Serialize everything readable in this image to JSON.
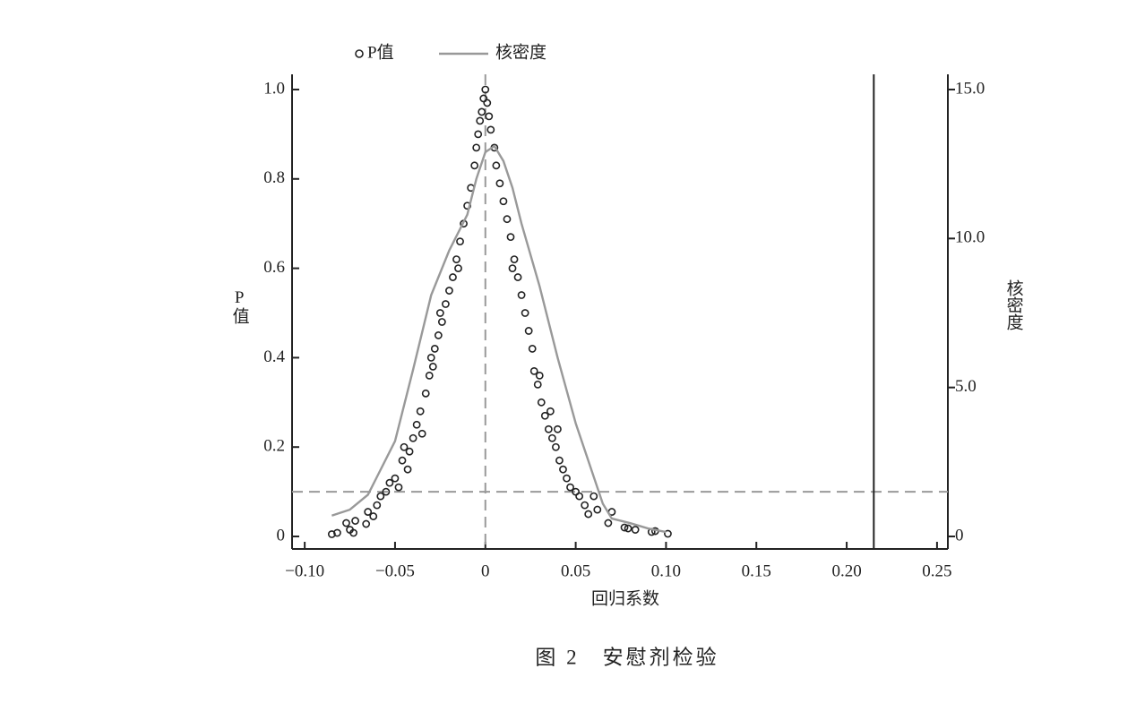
{
  "chart_data": {
    "type": "scatter",
    "caption": "图 2　安慰剂检验",
    "x_label": "回归系数",
    "y_label": "P值",
    "y2_label": "核密度",
    "xlim": [
      -0.107,
      0.256
    ],
    "ylim": [
      -0.028,
      1.034
    ],
    "y2lim": [
      -0.42,
      15.51
    ],
    "xticks": [
      {
        "value": -0.1,
        "label": "−0.10"
      },
      {
        "value": -0.05,
        "label": "−0.05"
      },
      0,
      0.05,
      {
        "value": 0.1,
        "label": "0.10"
      },
      0.15,
      {
        "value": 0.2,
        "label": "0.20"
      },
      0.25
    ],
    "yticks": [
      0,
      0.2,
      0.4,
      0.6,
      0.8,
      {
        "value": 1,
        "label": "1.0"
      }
    ],
    "y2ticks": [
      0,
      {
        "value": 5,
        "label": "5.0"
      },
      {
        "value": 10,
        "label": "10.0"
      },
      {
        "value": 15,
        "label": "15.0"
      }
    ],
    "reference_lines": [
      {
        "axis": "y",
        "value": 0.1,
        "style": "dashed",
        "color": "#999999"
      },
      {
        "axis": "x",
        "value": 0,
        "style": "dashed",
        "color": "#999999"
      },
      {
        "axis": "x",
        "value": 0.215,
        "style": "solid",
        "color": "#222222"
      }
    ],
    "series": [
      {
        "name": "P值",
        "type": "scatter",
        "color": "#222222",
        "x": [
          -0.085,
          -0.082,
          -0.077,
          -0.075,
          -0.073,
          -0.072,
          -0.066,
          -0.065,
          -0.062,
          -0.06,
          -0.058,
          -0.055,
          -0.053,
          -0.05,
          -0.048,
          -0.046,
          -0.045,
          -0.043,
          -0.042,
          -0.04,
          -0.038,
          -0.036,
          -0.035,
          -0.033,
          -0.031,
          -0.03,
          -0.029,
          -0.028,
          -0.026,
          -0.025,
          -0.024,
          -0.022,
          -0.02,
          -0.018,
          -0.016,
          -0.015,
          -0.014,
          -0.012,
          -0.01,
          -0.008,
          -0.006,
          -0.005,
          -0.004,
          -0.003,
          -0.002,
          -0.001,
          0,
          0.001,
          0.002,
          0.003,
          0.005,
          0.006,
          0.008,
          0.01,
          0.012,
          0.014,
          0.015,
          0.016,
          0.018,
          0.02,
          0.022,
          0.024,
          0.026,
          0.027,
          0.029,
          0.03,
          0.031,
          0.033,
          0.035,
          0.036,
          0.037,
          0.039,
          0.04,
          0.041,
          0.043,
          0.045,
          0.047,
          0.05,
          0.052,
          0.055,
          0.057,
          0.06,
          0.062,
          0.068,
          0.07,
          0.077,
          0.079,
          0.083,
          0.092,
          0.094,
          0.101
        ],
        "values": [
          0.005,
          0.008,
          0.03,
          0.015,
          0.008,
          0.035,
          0.028,
          0.055,
          0.045,
          0.07,
          0.09,
          0.1,
          0.12,
          0.13,
          0.11,
          0.17,
          0.2,
          0.15,
          0.19,
          0.22,
          0.25,
          0.28,
          0.23,
          0.32,
          0.36,
          0.4,
          0.38,
          0.42,
          0.45,
          0.5,
          0.48,
          0.52,
          0.55,
          0.58,
          0.62,
          0.6,
          0.66,
          0.7,
          0.74,
          0.78,
          0.83,
          0.87,
          0.9,
          0.93,
          0.95,
          0.98,
          1.0,
          0.97,
          0.94,
          0.91,
          0.87,
          0.83,
          0.79,
          0.75,
          0.71,
          0.67,
          0.6,
          0.62,
          0.58,
          0.54,
          0.5,
          0.46,
          0.42,
          0.37,
          0.34,
          0.36,
          0.3,
          0.27,
          0.24,
          0.28,
          0.22,
          0.2,
          0.24,
          0.17,
          0.15,
          0.13,
          0.11,
          0.1,
          0.09,
          0.07,
          0.05,
          0.09,
          0.06,
          0.03,
          0.055,
          0.02,
          0.018,
          0.015,
          0.01,
          0.012,
          0.006
        ]
      },
      {
        "name": "核密度",
        "type": "line",
        "axis": "y2",
        "color": "#999999",
        "x": [
          -0.085,
          -0.075,
          -0.065,
          -0.06,
          -0.05,
          -0.04,
          -0.03,
          -0.02,
          -0.01,
          -0.005,
          0,
          0.005,
          0.01,
          0.015,
          0.02,
          0.03,
          0.04,
          0.05,
          0.06,
          0.065,
          0.07,
          0.08,
          0.09,
          0.1
        ],
        "values": [
          0.7,
          0.9,
          1.4,
          2.0,
          3.2,
          5.6,
          8.1,
          9.6,
          10.8,
          12.0,
          12.9,
          13.1,
          12.6,
          11.7,
          10.5,
          8.4,
          6.0,
          3.8,
          2.0,
          1.1,
          0.6,
          0.45,
          0.27,
          0.15
        ]
      }
    ]
  }
}
